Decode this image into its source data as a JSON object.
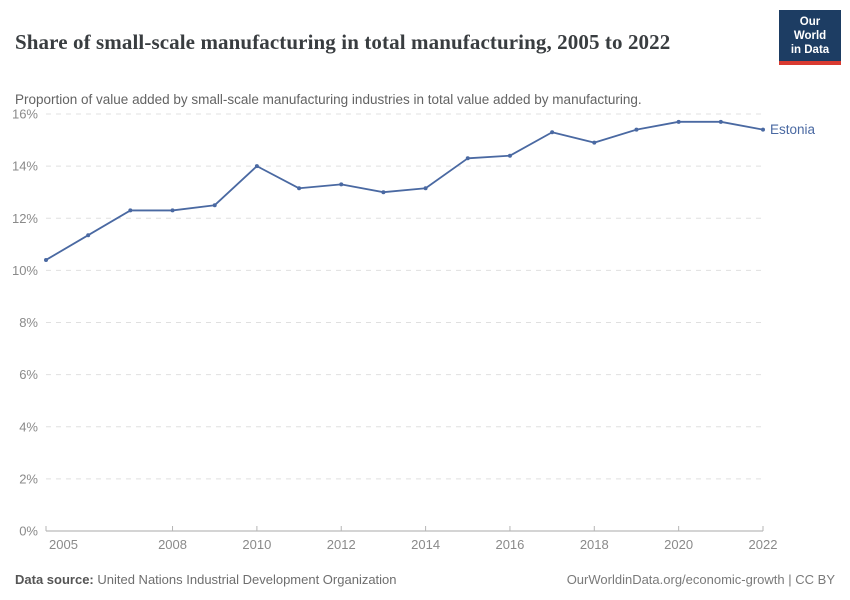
{
  "header": {
    "title": "Share of small-scale manufacturing in total manufacturing, 2005 to 2022",
    "subtitle": "Proportion of value added by small-scale manufacturing industries in total value added by manufacturing.",
    "logo": {
      "line1": "Our World",
      "line2": "in Data",
      "bg_color": "#1d3d63",
      "accent_color": "#d93a31"
    }
  },
  "footer": {
    "source_label": "Data source:",
    "source_text": " United Nations Industrial Development Organization",
    "credit_link": "OurWorldinData.org/economic-growth",
    "divider": " | ",
    "license": "CC BY"
  },
  "chart_data": {
    "type": "line",
    "title": "Share of small-scale manufacturing in total manufacturing, 2005 to 2022",
    "xlabel": "",
    "ylabel": "",
    "x": [
      2005,
      2006,
      2007,
      2008,
      2009,
      2010,
      2011,
      2012,
      2013,
      2014,
      2015,
      2016,
      2017,
      2018,
      2019,
      2020,
      2021,
      2022
    ],
    "series": [
      {
        "name": "Estonia",
        "color": "#4a69a2",
        "values": [
          10.4,
          11.35,
          12.3,
          12.3,
          12.5,
          14.0,
          13.15,
          13.3,
          13.0,
          13.15,
          14.3,
          14.4,
          15.3,
          14.9,
          15.4,
          15.7,
          15.7,
          15.4
        ]
      }
    ],
    "xlim": [
      2005,
      2022
    ],
    "ylim": [
      0,
      16
    ],
    "x_ticks": [
      2005,
      2008,
      2010,
      2012,
      2014,
      2016,
      2018,
      2020,
      2022
    ],
    "y_ticks": [
      0,
      2,
      4,
      6,
      8,
      10,
      12,
      14,
      16
    ],
    "y_suffix": "%",
    "grid": "horizontal-dashed",
    "legend_position": "line-end-label"
  }
}
